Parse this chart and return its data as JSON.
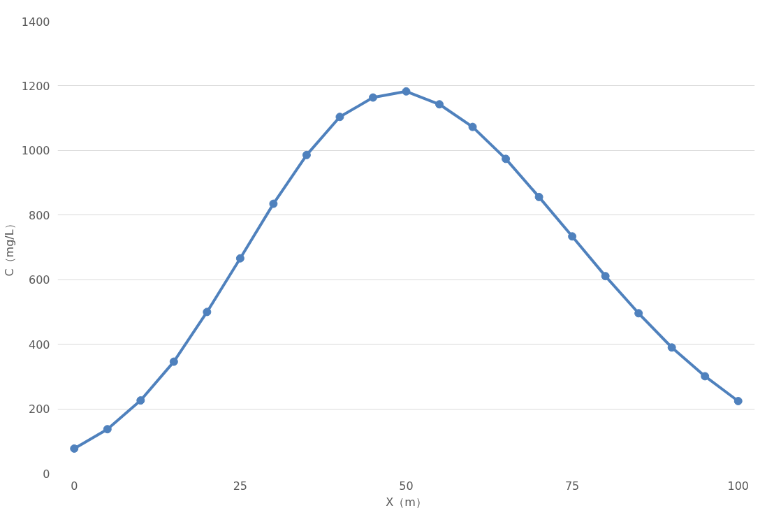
{
  "chart_data": {
    "type": "line",
    "xlabel": "X（m）",
    "ylabel": "C（mg/L）",
    "x": [
      0,
      5,
      10,
      15,
      20,
      25,
      30,
      35,
      40,
      45,
      50,
      55,
      60,
      65,
      70,
      75,
      80,
      85,
      90,
      95,
      100
    ],
    "series": [
      {
        "color": "#4f81bd",
        "values": [
          77,
          137,
          226,
          346,
          500,
          666,
          835,
          986,
          1104,
          1164,
          1183,
          1143,
          1073,
          974,
          856,
          734,
          611,
          496,
          390,
          301,
          224
        ]
      }
    ],
    "xlim": [
      -2.5,
      102.5
    ],
    "xticks": [
      0,
      25,
      50,
      75,
      100
    ],
    "ylim": [
      0,
      1400
    ],
    "yticks": [
      0,
      200,
      400,
      600,
      800,
      1000,
      1200,
      1400
    ],
    "grid": "y",
    "marker": "circle"
  }
}
